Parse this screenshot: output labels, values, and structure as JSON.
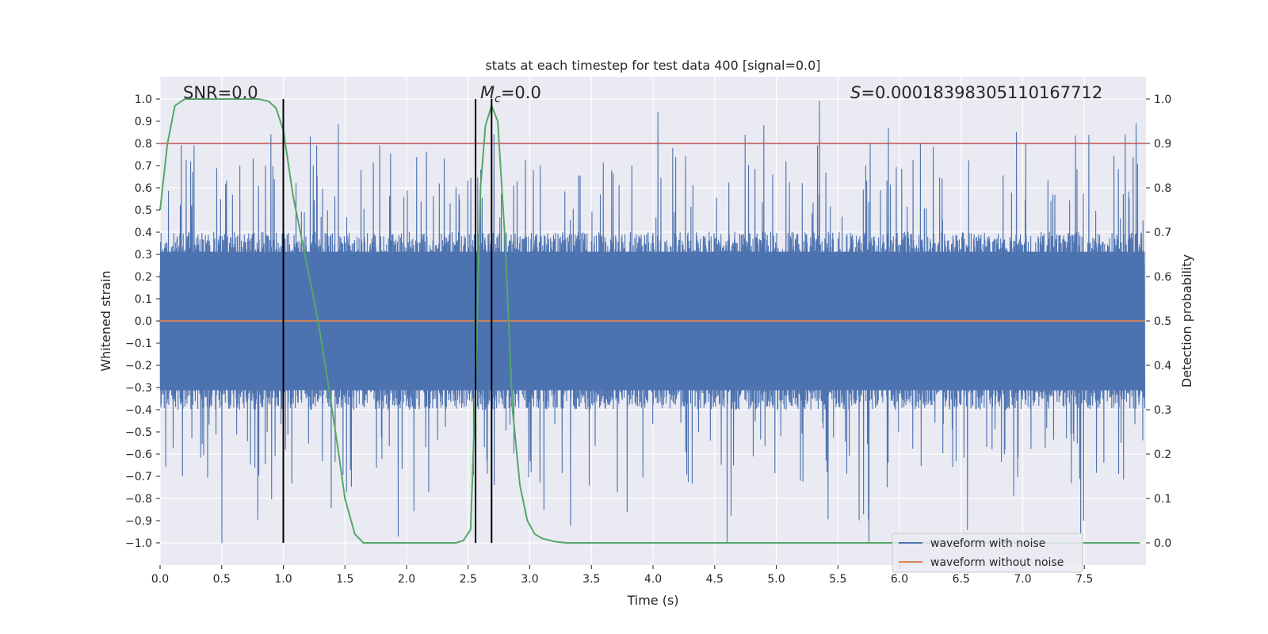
{
  "chart_data": {
    "type": "line",
    "title": "stats at each timestep for test data 400 [signal=0.0]",
    "xlabel": "Time (s)",
    "ylabel_left": "Whitened strain",
    "ylabel_right": "Detection probability",
    "xlim": [
      0.0,
      8.0
    ],
    "ylim_left": [
      -1.1,
      1.1
    ],
    "ylim_right": [
      -0.05,
      1.05
    ],
    "x_ticks": [
      0.0,
      0.5,
      1.0,
      1.5,
      2.0,
      2.5,
      3.0,
      3.5,
      4.0,
      4.5,
      5.0,
      5.5,
      6.0,
      6.5,
      7.0,
      7.5
    ],
    "x_tick_labels": [
      "0.0",
      "0.5",
      "1.0",
      "1.5",
      "2.0",
      "2.5",
      "3.0",
      "3.5",
      "4.0",
      "4.5",
      "5.0",
      "5.5",
      "6.0",
      "6.5",
      "7.0",
      "7.5"
    ],
    "y_left_ticks": [
      -1.0,
      -0.9,
      -0.8,
      -0.7,
      -0.6,
      -0.5,
      -0.4,
      -0.3,
      -0.2,
      -0.1,
      0.0,
      0.1,
      0.2,
      0.3,
      0.4,
      0.5,
      0.6,
      0.7,
      0.8,
      0.9,
      1.0
    ],
    "y_left_tick_labels": [
      "−1.0",
      "−0.9",
      "−0.8",
      "−0.7",
      "−0.6",
      "−0.5",
      "−0.4",
      "−0.3",
      "−0.2",
      "−0.1",
      "0.0",
      "0.1",
      "0.2",
      "0.3",
      "0.4",
      "0.5",
      "0.6",
      "0.7",
      "0.8",
      "0.9",
      "1.0"
    ],
    "y_right_ticks": [
      0.0,
      0.1,
      0.2,
      0.3,
      0.4,
      0.5,
      0.6,
      0.7,
      0.8,
      0.9,
      1.0
    ],
    "y_right_tick_labels": [
      "0.0",
      "0.1",
      "0.2",
      "0.3",
      "0.4",
      "0.5",
      "0.6",
      "0.7",
      "0.8",
      "0.9",
      "1.0"
    ],
    "grid": true,
    "annotations": {
      "snr": "SNR=0.0",
      "mc_symbol": "M",
      "mc_sub": "c",
      "mc_value": "=0.0",
      "s_symbol": "S",
      "s_value": "=0.00018398305110167712"
    },
    "threshold": {
      "axis": "right",
      "value": 0.9,
      "color": "#c44e52"
    },
    "vertical_lines": [
      1.0,
      2.56,
      2.69
    ],
    "vertical_line_range": [
      -1.0,
      1.0
    ],
    "series": [
      {
        "name": "waveform with noise",
        "axis": "left",
        "style": "dense-noise",
        "color": "#4c72b0",
        "x_range": [
          0.0,
          7.99
        ],
        "core_band": [
          -0.4,
          0.4
        ],
        "peak_times": [
          0.17,
          0.5,
          0.9,
          1.1,
          1.27,
          1.51,
          1.78,
          1.93,
          2.16,
          2.6,
          2.71,
          3.33,
          3.79,
          4.04,
          4.6,
          4.9,
          5.35,
          5.75,
          6.17,
          6.55,
          6.95,
          7.47,
          7.92
        ],
        "peak_values": [
          0.79,
          -1.0,
          0.84,
          0.62,
          0.79,
          -0.77,
          0.79,
          -0.97,
          0.76,
          0.68,
          0.84,
          -0.92,
          -0.86,
          0.94,
          -1.0,
          0.88,
          0.99,
          -1.0,
          0.8,
          -0.94,
          0.85,
          -0.96,
          0.89
        ]
      },
      {
        "name": "waveform without noise",
        "axis": "left",
        "color": "#dd8452",
        "x": [
          0.0,
          7.99
        ],
        "y": [
          0.0,
          0.0
        ]
      },
      {
        "name": "detection probability",
        "axis": "right",
        "color": "#55a868",
        "x": [
          0.0,
          0.06,
          0.12,
          0.2,
          0.5,
          0.8,
          0.88,
          0.94,
          1.0,
          1.08,
          1.16,
          1.24,
          1.3,
          1.38,
          1.45,
          1.5,
          1.58,
          1.65,
          2.0,
          2.4,
          2.46,
          2.52,
          2.56,
          2.6,
          2.64,
          2.69,
          2.74,
          2.8,
          2.86,
          2.92,
          2.98,
          3.04,
          3.1,
          3.2,
          3.3,
          4.0,
          6.0,
          7.95
        ],
        "y": [
          0.75,
          0.9,
          0.985,
          1.0,
          1.0,
          1.0,
          0.995,
          0.98,
          0.93,
          0.78,
          0.67,
          0.56,
          0.47,
          0.33,
          0.2,
          0.1,
          0.02,
          0.0,
          0.0,
          0.0,
          0.005,
          0.03,
          0.35,
          0.8,
          0.94,
          0.985,
          0.95,
          0.68,
          0.3,
          0.13,
          0.05,
          0.02,
          0.01,
          0.003,
          0.0,
          0.0,
          0.0,
          0.0
        ]
      }
    ],
    "legend": {
      "position": "lower-right",
      "entries": [
        "waveform with noise",
        "waveform without noise"
      ]
    },
    "colors": {
      "background": "#eaeaf2",
      "grid": "#ffffff",
      "text": "#262626",
      "vline": "#000000"
    }
  }
}
